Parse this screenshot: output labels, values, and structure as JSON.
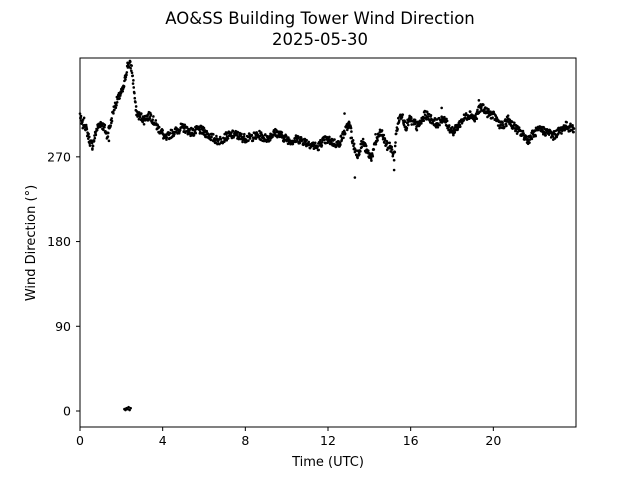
{
  "chart_data": {
    "type": "scatter",
    "title": "AO&SS Building Tower Wind Direction",
    "subtitle": "2025-05-30",
    "xlabel": "Time (UTC)",
    "ylabel": "Wind Direction (°)",
    "xlim": [
      0,
      24
    ],
    "ylim": [
      -17,
      375
    ],
    "xticks": [
      0,
      4,
      8,
      12,
      16,
      20
    ],
    "xtick_labels": [
      "0",
      "4",
      "8",
      "12",
      "16",
      "20"
    ],
    "yticks": [
      0,
      90,
      180,
      270
    ],
    "ytick_labels": [
      "0",
      "90",
      "180",
      "270"
    ],
    "grid": false,
    "marker_color": "#000000",
    "series": [
      {
        "points": [
          [
            0.0,
            315
          ],
          [
            0.1,
            303
          ],
          [
            0.2,
            307
          ],
          [
            0.3,
            300
          ],
          [
            0.4,
            292
          ],
          [
            0.5,
            285
          ],
          [
            0.6,
            282
          ],
          [
            0.7,
            290
          ],
          [
            0.8,
            299
          ],
          [
            0.9,
            303
          ],
          [
            1.0,
            306
          ],
          [
            1.1,
            303
          ],
          [
            1.2,
            300
          ],
          [
            1.3,
            292
          ],
          [
            1.4,
            300
          ],
          [
            1.5,
            306
          ],
          [
            1.6,
            318
          ],
          [
            1.7,
            325
          ],
          [
            1.8,
            330
          ],
          [
            1.9,
            334
          ],
          [
            2.0,
            338
          ],
          [
            2.1,
            342
          ],
          [
            2.2,
            355
          ],
          [
            2.3,
            367
          ],
          [
            2.4,
            369
          ],
          [
            2.5,
            364
          ],
          [
            2.6,
            345
          ],
          [
            2.7,
            320
          ],
          [
            2.8,
            315
          ],
          [
            2.9,
            313
          ],
          [
            3.0,
            312
          ],
          [
            3.1,
            309
          ],
          [
            3.2,
            313
          ],
          [
            3.3,
            312
          ],
          [
            3.4,
            315
          ],
          [
            3.5,
            310
          ],
          [
            3.6,
            307
          ],
          [
            3.7,
            303
          ],
          [
            3.8,
            300
          ],
          [
            3.9,
            298
          ],
          [
            4.0,
            295
          ],
          [
            4.1,
            289
          ],
          [
            4.2,
            290
          ],
          [
            4.3,
            293
          ],
          [
            4.5,
            296
          ],
          [
            4.7,
            298
          ],
          [
            4.9,
            301
          ],
          [
            5.1,
            300
          ],
          [
            5.3,
            297
          ],
          [
            5.5,
            296
          ],
          [
            5.7,
            299
          ],
          [
            5.9,
            298
          ],
          [
            6.1,
            295
          ],
          [
            6.3,
            292
          ],
          [
            6.5,
            289
          ],
          [
            6.7,
            287
          ],
          [
            6.9,
            289
          ],
          [
            7.1,
            292
          ],
          [
            7.3,
            293
          ],
          [
            7.5,
            294
          ],
          [
            7.7,
            292
          ],
          [
            7.9,
            290
          ],
          [
            8.1,
            290
          ],
          [
            8.3,
            291
          ],
          [
            8.5,
            292
          ],
          [
            8.7,
            293
          ],
          [
            8.9,
            290
          ],
          [
            9.1,
            290
          ],
          [
            9.3,
            294
          ],
          [
            9.5,
            296
          ],
          [
            9.7,
            293
          ],
          [
            9.9,
            290
          ],
          [
            10.1,
            288
          ],
          [
            10.3,
            287
          ],
          [
            10.5,
            289
          ],
          [
            10.7,
            288
          ],
          [
            10.9,
            286
          ],
          [
            11.1,
            284
          ],
          [
            11.3,
            282
          ],
          [
            11.5,
            280
          ],
          [
            11.7,
            286
          ],
          [
            11.9,
            288
          ],
          [
            12.1,
            287
          ],
          [
            12.3,
            285
          ],
          [
            12.5,
            283
          ],
          [
            12.6,
            287
          ],
          [
            12.7,
            292
          ],
          [
            12.8,
            296
          ],
          [
            12.9,
            300
          ],
          [
            13.0,
            305
          ],
          [
            13.1,
            300
          ],
          [
            13.2,
            285
          ],
          [
            13.3,
            278
          ],
          [
            13.4,
            272
          ],
          [
            13.5,
            276
          ],
          [
            13.6,
            282
          ],
          [
            13.7,
            286
          ],
          [
            13.8,
            280
          ],
          [
            13.9,
            275
          ],
          [
            14.0,
            272
          ],
          [
            14.1,
            270
          ],
          [
            14.2,
            276
          ],
          [
            14.3,
            285
          ],
          [
            14.4,
            290
          ],
          [
            14.5,
            294
          ],
          [
            14.6,
            296
          ],
          [
            14.7,
            289
          ],
          [
            14.8,
            284
          ],
          [
            14.9,
            280
          ],
          [
            15.0,
            282
          ],
          [
            15.1,
            276
          ],
          [
            15.2,
            270
          ],
          [
            15.3,
            295
          ],
          [
            15.4,
            307
          ],
          [
            15.5,
            313
          ],
          [
            15.6,
            316
          ],
          [
            15.7,
            305
          ],
          [
            15.8,
            302
          ],
          [
            15.9,
            308
          ],
          [
            16.0,
            310
          ],
          [
            16.1,
            305
          ],
          [
            16.2,
            306
          ],
          [
            16.3,
            302
          ],
          [
            16.5,
            307
          ],
          [
            16.7,
            315
          ],
          [
            16.9,
            312
          ],
          [
            17.1,
            308
          ],
          [
            17.3,
            305
          ],
          [
            17.5,
            311
          ],
          [
            17.7,
            307
          ],
          [
            17.9,
            300
          ],
          [
            18.1,
            297
          ],
          [
            18.3,
            303
          ],
          [
            18.5,
            309
          ],
          [
            18.7,
            313
          ],
          [
            18.9,
            316
          ],
          [
            19.1,
            310
          ],
          [
            19.3,
            320
          ],
          [
            19.5,
            323
          ],
          [
            19.7,
            317
          ],
          [
            19.9,
            315
          ],
          [
            20.1,
            312
          ],
          [
            20.3,
            305
          ],
          [
            20.5,
            302
          ],
          [
            20.7,
            310
          ],
          [
            20.9,
            305
          ],
          [
            21.1,
            300
          ],
          [
            21.3,
            296
          ],
          [
            21.5,
            292
          ],
          [
            21.7,
            288
          ],
          [
            21.9,
            294
          ],
          [
            22.1,
            297
          ],
          [
            22.3,
            299
          ],
          [
            22.5,
            297
          ],
          [
            22.7,
            296
          ],
          [
            22.9,
            292
          ],
          [
            23.1,
            296
          ],
          [
            23.3,
            299
          ],
          [
            23.5,
            303
          ],
          [
            23.7,
            301
          ],
          [
            23.9,
            300
          ]
        ],
        "outliers": [
          [
            2.15,
            2
          ],
          [
            2.2,
            1
          ],
          [
            2.25,
            3
          ],
          [
            2.3,
            2
          ],
          [
            2.35,
            4
          ],
          [
            2.4,
            1
          ],
          [
            2.45,
            3
          ],
          [
            13.3,
            248
          ],
          [
            15.2,
            256
          ],
          [
            13.1,
            290
          ],
          [
            12.8,
            316
          ],
          [
            17.5,
            322
          ],
          [
            19.3,
            330
          ],
          [
            0.6,
            279
          ],
          [
            1.4,
            287
          ],
          [
            14.3,
            294
          ]
        ]
      }
    ]
  }
}
